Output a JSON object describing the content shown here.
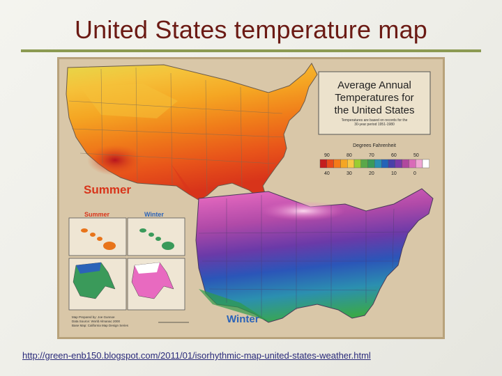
{
  "slide": {
    "title": "United States temperature map",
    "source_url": "http://green-enb150.blogspot.com/2011/01/isorhythmic-map-united-states-weather.html"
  },
  "map": {
    "heading_line1": "Average Annual",
    "heading_line2": "Temperatures for",
    "heading_line3": "the United States",
    "heading_note1": "Temperatures are based on records for the",
    "heading_note2": "30-year period 1951-1980",
    "legend_title": "Degrees Fahrenheit",
    "legend_warm_labels": [
      "90",
      "80",
      "70",
      "60",
      "50"
    ],
    "legend_cool_labels": [
      "40",
      "30",
      "20",
      "10",
      "0"
    ],
    "legend_colors": [
      "#c41e1e",
      "#e84a1a",
      "#f57b18",
      "#f5a623",
      "#f7c948",
      "#9acd32",
      "#5aa84a",
      "#3a9a5a",
      "#2b8fb0",
      "#2463b8",
      "#4a3fa8",
      "#7a3aa8",
      "#b0489e",
      "#d96ab8",
      "#f0a8d4",
      "#ffffff"
    ],
    "summer_label": "Summer",
    "winter_label": "Winter",
    "inset_summer_label": "Summer",
    "inset_winter_label": "Winter",
    "credit_line1": "Map Prepared by: Joe Gunnoe",
    "credit_line2": "Data Source: World Almanac 2000",
    "credit_line3": "Base Map: California Map Design Series"
  }
}
